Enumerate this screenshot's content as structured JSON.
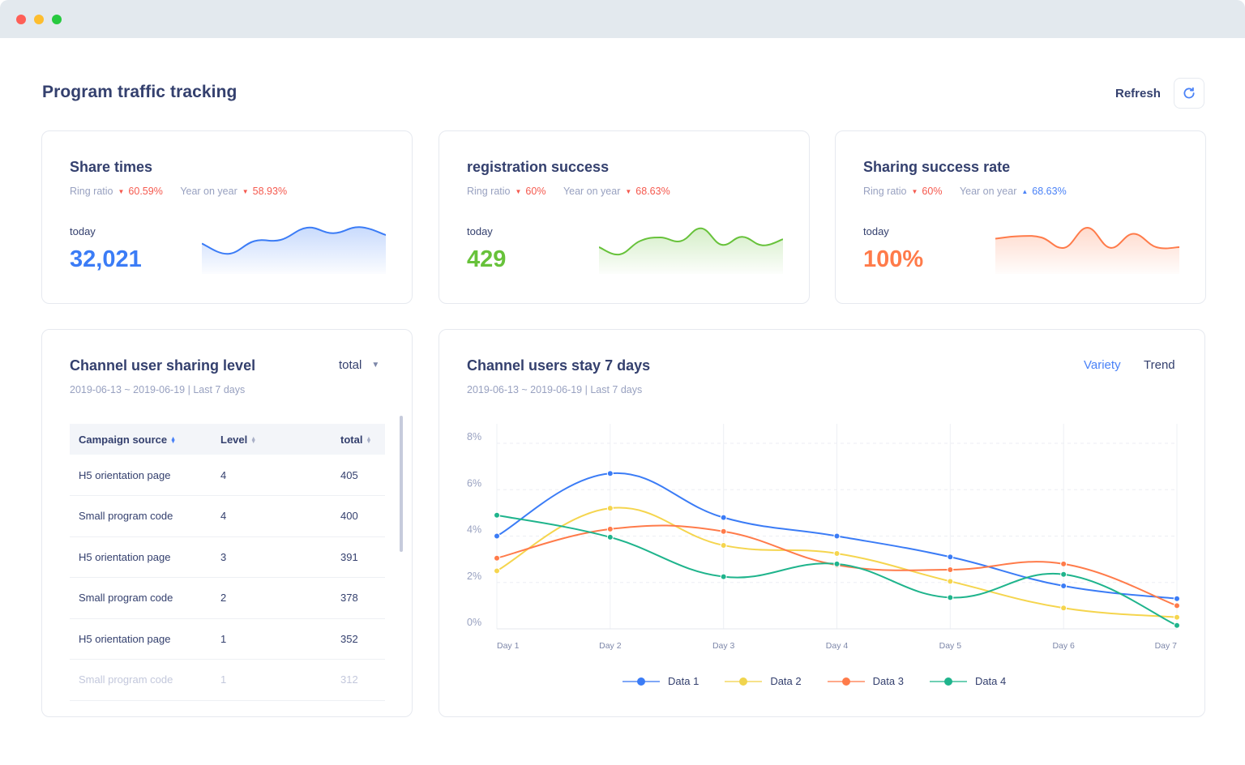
{
  "window": {
    "controls": [
      "close",
      "minimize",
      "maximize"
    ]
  },
  "header": {
    "title": "Program traffic tracking",
    "refresh_label": "Refresh",
    "refresh_icon": "refresh-icon"
  },
  "stats": [
    {
      "title": "Share times",
      "ring_ratio_label": "Ring ratio",
      "ring_ratio_dir": "down",
      "ring_ratio": "60.59%",
      "yoy_label": "Year on year",
      "yoy_dir": "down",
      "yoy": "58.93%",
      "today_label": "today",
      "value": "32,021",
      "color": "#3b7cf6",
      "spark": [
        4.2,
        2.5,
        4.6,
        4.8,
        6.8,
        5.9,
        6.9,
        5.6
      ]
    },
    {
      "title": "registration success",
      "ring_ratio_label": "Ring ratio",
      "ring_ratio_dir": "down",
      "ring_ratio": "60%",
      "yoy_label": "Year on year",
      "yoy_dir": "down",
      "yoy": "68.63%",
      "today_label": "today",
      "value": "429",
      "color": "#67c23a",
      "spark": [
        3.6,
        2.4,
        4.6,
        5.2,
        4.6,
        6.7,
        4.0,
        5.3,
        3.9,
        4.9
      ]
    },
    {
      "title": "Sharing success rate",
      "ring_ratio_label": "Ring ratio",
      "ring_ratio_dir": "down",
      "ring_ratio": "60%",
      "yoy_label": "Year on year",
      "yoy_dir": "up",
      "yoy": "68.63%",
      "today_label": "today",
      "value": "100%",
      "color": "#ff7b4a",
      "spark": [
        5.0,
        5.4,
        5.2,
        3.5,
        6.8,
        3.5,
        5.8,
        3.6,
        3.6
      ]
    }
  ],
  "sharing_level": {
    "title": "Channel user sharing level",
    "subtitle": "2019-06-13 ~ 2019-06-19 | Last 7 days",
    "select_value": "total",
    "columns": [
      "Campaign source",
      "Level",
      "total"
    ],
    "rows": [
      [
        "H5 orientation page",
        "4",
        "405"
      ],
      [
        "Small program code",
        "4",
        "400"
      ],
      [
        "H5 orientation page",
        "3",
        "391"
      ],
      [
        "Small program code",
        "2",
        "378"
      ],
      [
        "H5 orientation page",
        "1",
        "352"
      ],
      [
        "Small program code",
        "1",
        "312"
      ]
    ]
  },
  "stay": {
    "title": "Channel users stay 7 days",
    "subtitle": "2019-06-13 ~ 2019-06-19 | Last 7 days",
    "tabs": [
      "Variety",
      "Trend"
    ],
    "active_tab": "Variety"
  },
  "chart_data": {
    "type": "line",
    "title": "Channel users stay 7 days",
    "xlabel": "",
    "ylabel": "",
    "x": [
      "Day 1",
      "Day 2",
      "Day 3",
      "Day 4",
      "Day 5",
      "Day 6",
      "Day 7"
    ],
    "yticks": [
      "0%",
      "2%",
      "4%",
      "6%",
      "8%"
    ],
    "ylim": [
      0,
      8
    ],
    "grid": true,
    "legend_position": "bottom",
    "smooth": true,
    "series": [
      {
        "name": "Data 1",
        "color": "#3b7cf6",
        "values": [
          4.0,
          6.7,
          4.8,
          4.0,
          3.1,
          1.85,
          1.3
        ]
      },
      {
        "name": "Data 2",
        "color": "#f5d54e",
        "values": [
          2.5,
          5.2,
          3.6,
          3.25,
          2.05,
          0.9,
          0.5
        ]
      },
      {
        "name": "Data 3",
        "color": "#ff7b4a",
        "values": [
          3.05,
          4.3,
          4.2,
          2.75,
          2.55,
          2.8,
          1.0
        ]
      },
      {
        "name": "Data 4",
        "color": "#1fb48c",
        "values": [
          4.9,
          3.95,
          2.25,
          2.8,
          1.35,
          2.35,
          0.15
        ]
      }
    ]
  }
}
